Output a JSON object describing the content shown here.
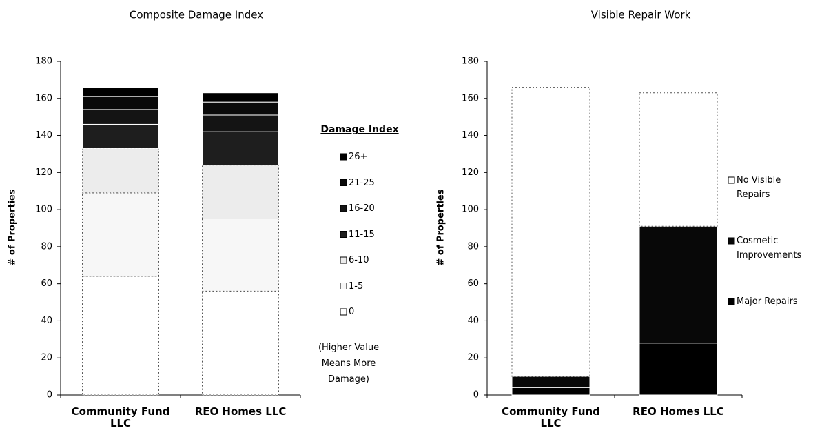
{
  "chart_data": [
    {
      "type": "bar",
      "stacked": true,
      "title": "Composite Damage Index",
      "ylabel": "# of Properties",
      "categories": [
        "Community Fund LLC",
        "REO Homes LLC"
      ],
      "series": [
        {
          "name": "0",
          "color": "#ffffff",
          "values": [
            64,
            56
          ]
        },
        {
          "name": "1-5",
          "color": "#f7f7f7",
          "values": [
            45,
            39
          ]
        },
        {
          "name": "6-10",
          "color": "#ececec",
          "values": [
            24,
            29
          ]
        },
        {
          "name": "11-15",
          "color": "#1e1e1e",
          "values": [
            13,
            18
          ]
        },
        {
          "name": "16-20",
          "color": "#141414",
          "values": [
            8,
            9
          ]
        },
        {
          "name": "21-25",
          "color": "#0a0a0a",
          "values": [
            7,
            7
          ]
        },
        {
          "name": "26+",
          "color": "#000000",
          "values": [
            5,
            5
          ]
        }
      ],
      "ylim": [
        0,
        180
      ],
      "yticks": [
        0,
        20,
        40,
        60,
        80,
        100,
        120,
        140,
        160,
        180
      ],
      "legend_title": "Damage Index",
      "note": "(Higher Value Means More Damage)",
      "legend": "right"
    },
    {
      "type": "bar",
      "stacked": true,
      "title": "Visible Repair Work",
      "ylabel": "# of Properties",
      "categories": [
        "Community Fund LLC",
        "REO Homes LLC"
      ],
      "series": [
        {
          "name": "Major Repairs",
          "color": "#000000",
          "values": [
            4,
            28
          ]
        },
        {
          "name": "Cosmetic Improvements",
          "color": "#080808",
          "values": [
            6,
            63
          ]
        },
        {
          "name": "No Visible Repairs",
          "color": "#ffffff",
          "values": [
            156,
            72
          ]
        }
      ],
      "ylim": [
        0,
        180
      ],
      "yticks": [
        0,
        20,
        40,
        60,
        80,
        100,
        120,
        140,
        160,
        180
      ],
      "legend": "right"
    }
  ]
}
